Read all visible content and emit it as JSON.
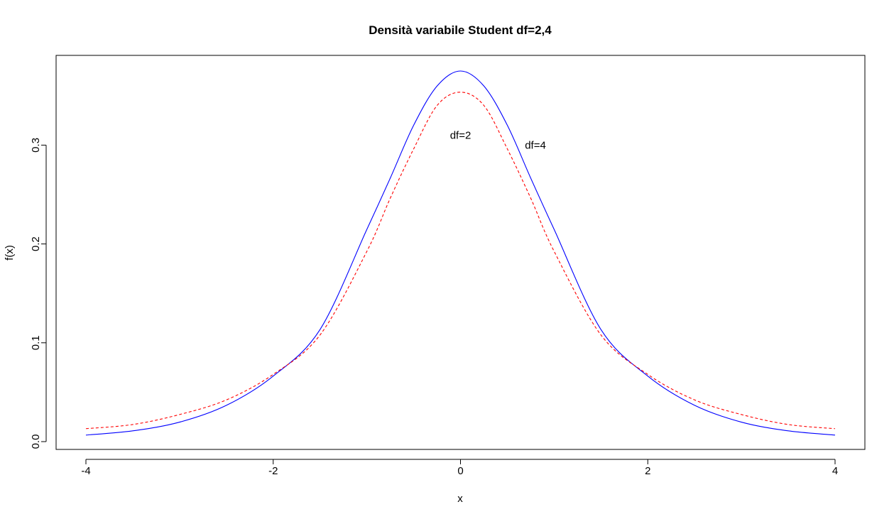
{
  "chart_data": {
    "type": "line",
    "title": "Densità variabile Student df=2,4",
    "xlabel": "x",
    "ylabel": "f(x)",
    "xlim": [
      -4,
      4
    ],
    "ylim": [
      0,
      0.375
    ],
    "x_ticks": [
      -4,
      -2,
      0,
      2,
      4
    ],
    "x_tick_labels": [
      "-4",
      "-2",
      "0",
      "2",
      "4"
    ],
    "y_ticks": [
      0.0,
      0.1,
      0.2,
      0.3
    ],
    "y_tick_labels": [
      "0.0",
      "0.1",
      "0.2",
      "0.3"
    ],
    "grid": false,
    "x": [
      -4.0,
      -3.5,
      -3.0,
      -2.5,
      -2.0,
      -1.5,
      -1.0,
      -0.75,
      -0.5,
      -0.25,
      0.0,
      0.25,
      0.5,
      0.75,
      1.0,
      1.5,
      2.0,
      2.5,
      3.0,
      3.5,
      4.0
    ],
    "series": [
      {
        "color": "#0000ff",
        "dash": "solid",
        "values": [
          0.0066,
          0.0109,
          0.0197,
          0.0367,
          0.0663,
          0.1134,
          0.2147,
          0.2666,
          0.3201,
          0.3598,
          0.375,
          0.3598,
          0.3201,
          0.2666,
          0.2147,
          0.1134,
          0.0663,
          0.0367,
          0.0197,
          0.0109,
          0.0066
        ]
      },
      {
        "color": "#ff0000",
        "dash": "dashed",
        "values": [
          0.0131,
          0.0173,
          0.0274,
          0.0422,
          0.068,
          0.1079,
          0.1925,
          0.2463,
          0.2962,
          0.3401,
          0.3536,
          0.3401,
          0.2962,
          0.2463,
          0.1925,
          0.1079,
          0.068,
          0.0422,
          0.0274,
          0.0173,
          0.0131
        ]
      }
    ],
    "annotations": [
      {
        "text": "df=2",
        "x": 0.0,
        "y": 0.31
      },
      {
        "text": "df=4",
        "x": 0.8,
        "y": 0.3
      }
    ]
  }
}
